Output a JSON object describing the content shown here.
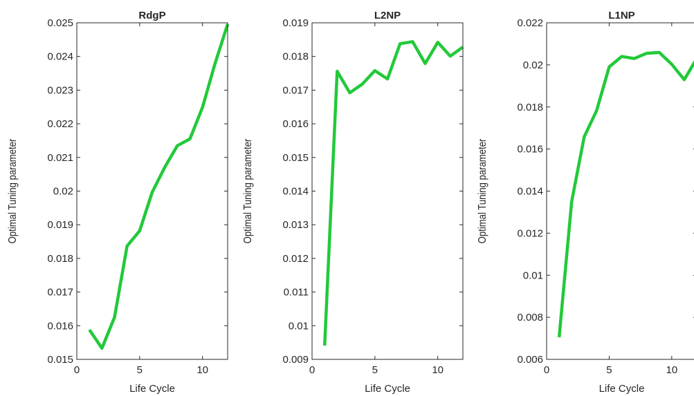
{
  "chart_data": [
    {
      "type": "line",
      "title": "RdgP",
      "xlabel": "Life Cycle",
      "ylabel": "Optimal Tuning parameter",
      "x": [
        1,
        2,
        3,
        4,
        5,
        6,
        7,
        8,
        9,
        10,
        11,
        12
      ],
      "values": [
        0.01588,
        0.01533,
        0.01625,
        0.01837,
        0.01882,
        0.01997,
        0.02071,
        0.02135,
        0.02155,
        0.02249,
        0.02379,
        0.02496
      ],
      "color": "#22c93a",
      "xlim": [
        0,
        12
      ],
      "xticks": [
        0,
        5,
        10
      ],
      "ylim": [
        0.015,
        0.025
      ],
      "yticks": [
        0.015,
        0.016,
        0.017,
        0.018,
        0.019,
        0.02,
        0.021,
        0.022,
        0.023,
        0.024,
        0.025
      ],
      "grid": false
    },
    {
      "type": "line",
      "title": "L2NP",
      "xlabel": "Life Cycle",
      "ylabel": "Optimal Tuning parameter",
      "x": [
        1,
        2,
        3,
        4,
        5,
        6,
        7,
        8,
        9,
        10,
        11,
        12
      ],
      "values": [
        0.00941,
        0.01756,
        0.01692,
        0.01718,
        0.01758,
        0.01733,
        0.01838,
        0.01844,
        0.01779,
        0.01842,
        0.01801,
        0.01828
      ],
      "color": "#22c93a",
      "xlim": [
        0,
        12
      ],
      "xticks": [
        0,
        5,
        10
      ],
      "ylim": [
        0.009,
        0.019
      ],
      "yticks": [
        0.009,
        0.01,
        0.011,
        0.012,
        0.013,
        0.014,
        0.015,
        0.016,
        0.017,
        0.018,
        0.019
      ],
      "grid": false
    },
    {
      "type": "line",
      "title": "L1NP",
      "xlabel": "Life Cycle",
      "ylabel": "Optimal Tuning parameter",
      "x": [
        1,
        2,
        3,
        4,
        5,
        6,
        7,
        8,
        9,
        10,
        11,
        12
      ],
      "values": [
        0.00705,
        0.0135,
        0.01658,
        0.01783,
        0.0199,
        0.0204,
        0.0203,
        0.02055,
        0.02059,
        0.02003,
        0.0193,
        0.0203
      ],
      "color": "#22c93a",
      "xlim": [
        0,
        12
      ],
      "xticks": [
        0,
        5,
        10
      ],
      "ylim": [
        0.006,
        0.022
      ],
      "yticks": [
        0.006,
        0.008,
        0.01,
        0.012,
        0.014,
        0.016,
        0.018,
        0.02,
        0.022
      ],
      "grid": false
    }
  ]
}
